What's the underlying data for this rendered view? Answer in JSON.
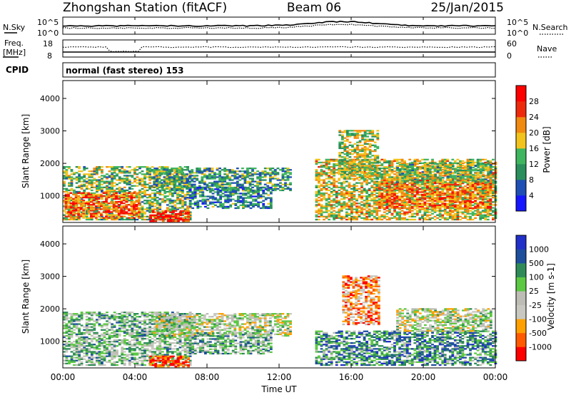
{
  "header": {
    "station": "Zhongshan Station (fitACF)",
    "beam": "Beam 06",
    "date": "25/Jan/2015"
  },
  "noise_panel": {
    "left_label": "N.Sky",
    "left_ticks": [
      "10^5",
      "10^0"
    ],
    "right_label": "N.Search",
    "right_ticks": [
      "10^5",
      "10^0"
    ]
  },
  "freq_panel": {
    "left_label_line1": "Freq.",
    "left_label_line2": "[MHz]",
    "left_ticks": [
      "18",
      "8"
    ],
    "right_label": "Nave",
    "right_ticks": [
      "60",
      "0"
    ]
  },
  "cpid": {
    "label": "CPID",
    "text": "normal (fast stereo) 153"
  },
  "colors": {
    "power_scale": [
      "#1616ff",
      "#1f4fb4",
      "#2a8f5c",
      "#3fb55f",
      "#f2c31c",
      "#f08a10",
      "#ee2a0c",
      "#ff0000"
    ],
    "velocity_scale": [
      "#ff0000",
      "#ff5a00",
      "#ffa000",
      "#c8c8c0",
      "#bdbdb5",
      "#5cc843",
      "#2e8b57",
      "#1d4f9c",
      "#2030c8"
    ]
  },
  "chart_data": [
    {
      "type": "heatmap",
      "title": "Power",
      "ylabel": "Slant Range [km]",
      "ylim": [
        180,
        4550
      ],
      "yticks": [
        1000,
        2000,
        3000,
        4000
      ],
      "xlim": [
        0,
        24
      ],
      "colorbar": {
        "label": "Power [dB]",
        "ticks": [
          "28",
          "24",
          "20",
          "16",
          "12",
          "8",
          "4"
        ],
        "range": [
          0,
          32
        ]
      },
      "echo_regions": [
        {
          "t0": 0.0,
          "t1": 7.0,
          "r0": 250,
          "r1": 1900,
          "level": 0.45
        },
        {
          "t0": 0.1,
          "t1": 4.2,
          "r0": 300,
          "r1": 1100,
          "level": 0.75
        },
        {
          "t0": 4.8,
          "t1": 7.0,
          "r0": 200,
          "r1": 550,
          "level": 0.85
        },
        {
          "t0": 5.0,
          "t1": 12.6,
          "r0": 1150,
          "r1": 1850,
          "level": 0.35
        },
        {
          "t0": 7.0,
          "t1": 11.5,
          "r0": 600,
          "r1": 1250,
          "level": 0.3
        },
        {
          "t0": 14.0,
          "t1": 24.0,
          "r0": 250,
          "r1": 2100,
          "level": 0.55
        },
        {
          "t0": 15.3,
          "t1": 17.5,
          "r0": 1500,
          "r1": 3000,
          "level": 0.5
        },
        {
          "t0": 17.5,
          "t1": 23.7,
          "r0": 600,
          "r1": 1500,
          "level": 0.7
        },
        {
          "t0": 18.5,
          "t1": 23.8,
          "r0": 1400,
          "r1": 2000,
          "level": 0.45
        }
      ]
    },
    {
      "type": "heatmap",
      "title": "Velocity",
      "ylabel": "Slant Range [km]",
      "xlabel": "Time UT",
      "ylim": [
        180,
        4550
      ],
      "yticks": [
        1000,
        2000,
        3000,
        4000
      ],
      "xlim": [
        0,
        24
      ],
      "xticks": [
        "00:00",
        "04:00",
        "08:00",
        "12:00",
        "16:00",
        "20:00",
        "00:00"
      ],
      "colorbar": {
        "label": "Velocity [m s-1]",
        "ticks": [
          "1000",
          "500",
          "100",
          "25",
          "-25",
          "-100",
          "-500",
          "-1000"
        ],
        "range": [
          -1000,
          1000
        ]
      },
      "echo_regions": [
        {
          "t0": 0.0,
          "t1": 7.0,
          "r0": 250,
          "r1": 1900,
          "level": 0.6
        },
        {
          "t0": 4.8,
          "t1": 7.0,
          "r0": 200,
          "r1": 550,
          "level": 0.1
        },
        {
          "t0": 5.0,
          "t1": 12.6,
          "r0": 1150,
          "r1": 1850,
          "level": 0.48
        },
        {
          "t0": 7.0,
          "t1": 11.5,
          "r0": 600,
          "r1": 1250,
          "level": 0.62
        },
        {
          "t0": 14.0,
          "t1": 24.0,
          "r0": 250,
          "r1": 1300,
          "level": 0.72
        },
        {
          "t0": 15.5,
          "t1": 17.5,
          "r0": 1500,
          "r1": 3000,
          "level": 0.25
        },
        {
          "t0": 18.5,
          "t1": 23.8,
          "r0": 1300,
          "r1": 2000,
          "level": 0.48
        }
      ]
    }
  ]
}
